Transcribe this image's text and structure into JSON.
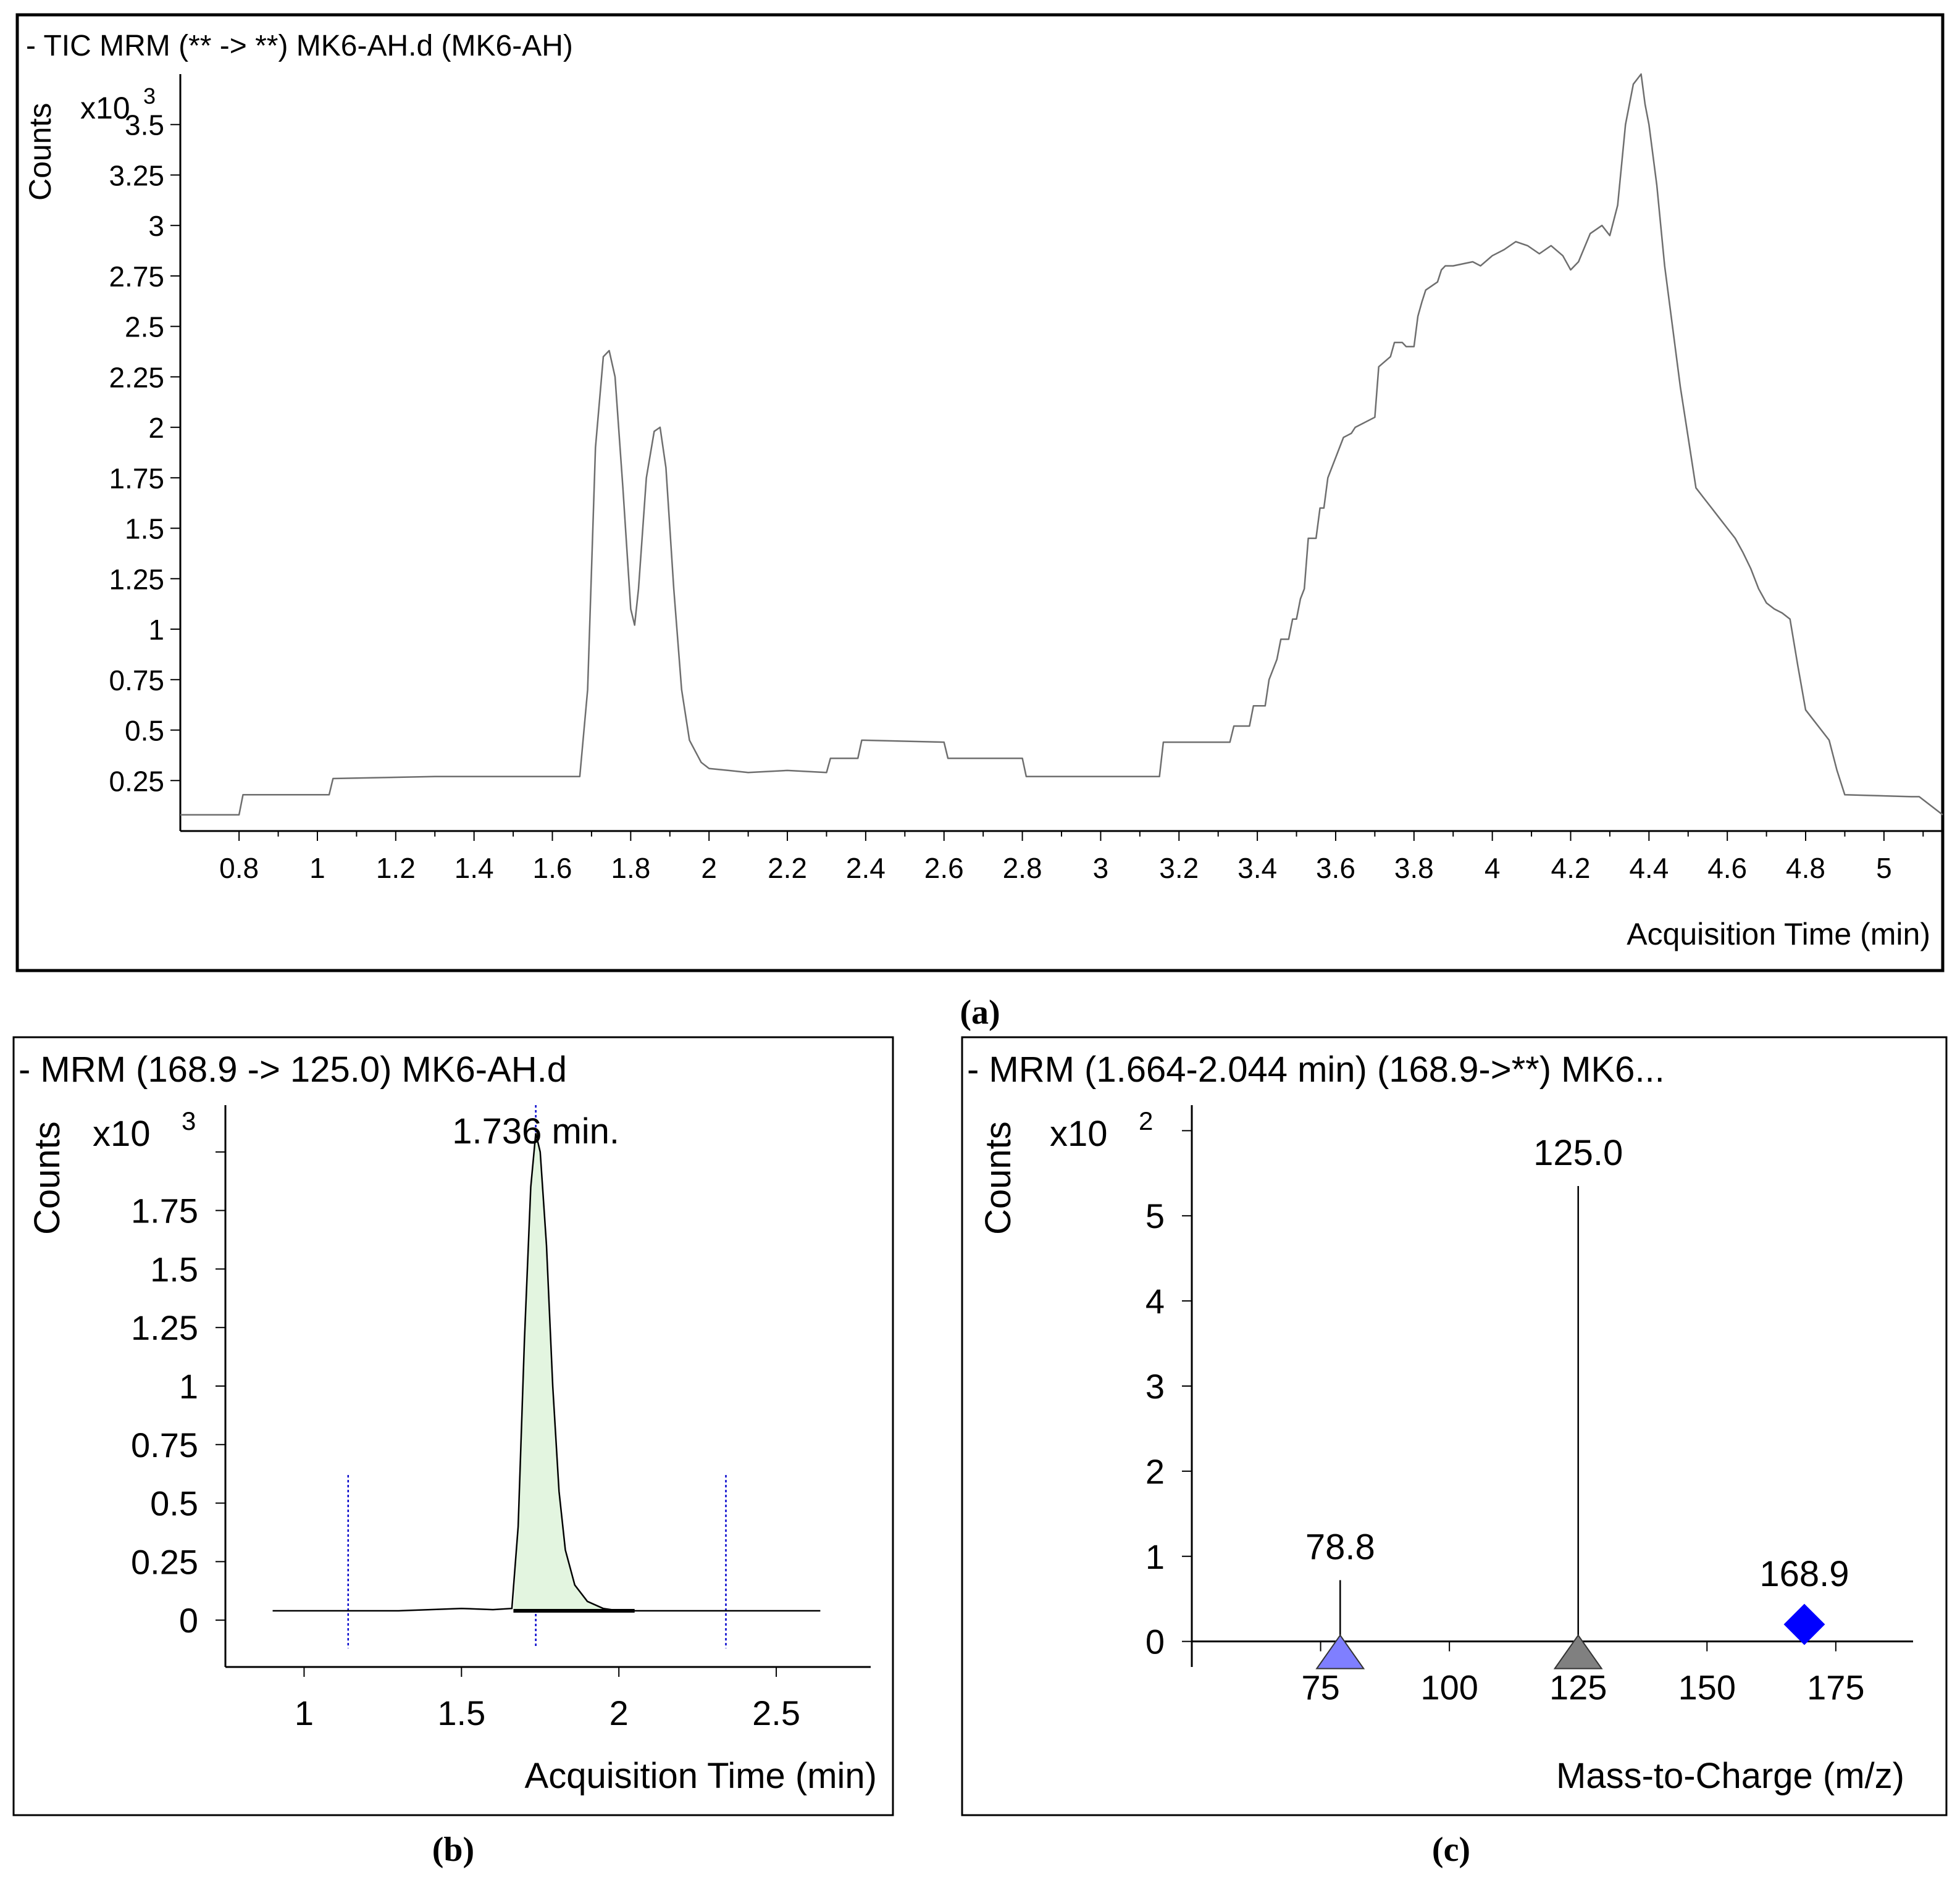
{
  "chart_data": [
    {
      "id": "a",
      "type": "line",
      "panel_label": "(a)",
      "title": "- TIC MRM (** -> **) MK6-AH.d (MK6-AH)",
      "ylabel": "Counts",
      "y_multiplier": "x10",
      "y_exponent": "3",
      "xlabel": "Acquisition Time (min)",
      "xlim": [
        0.65,
        5.15
      ],
      "ylim": [
        0,
        3.75
      ],
      "x_ticks": [
        "0.8",
        "1",
        "1.2",
        "1.4",
        "1.6",
        "1.8",
        "2",
        "2.2",
        "2.4",
        "2.6",
        "2.8",
        "3",
        "3.2",
        "3.4",
        "3.6",
        "3.8",
        "4",
        "4.2",
        "4.4",
        "4.6",
        "4.8",
        "5"
      ],
      "y_ticks": [
        "0.25",
        "0.5",
        "0.75",
        "1",
        "1.25",
        "1.5",
        "1.75",
        "2",
        "2.25",
        "2.5",
        "2.75",
        "3",
        "3.25",
        "3.5"
      ],
      "series": [
        {
          "name": "TIC",
          "x": [
            0.65,
            0.8,
            0.81,
            1.03,
            1.04,
            1.3,
            1.6,
            1.67,
            1.69,
            1.71,
            1.73,
            1.745,
            1.76,
            1.78,
            1.8,
            1.81,
            1.82,
            1.84,
            1.86,
            1.875,
            1.89,
            1.91,
            1.93,
            1.95,
            1.98,
            2.0,
            2.05,
            2.1,
            2.2,
            2.3,
            2.31,
            2.38,
            2.39,
            2.6,
            2.61,
            2.8,
            2.81,
            2.95,
            3.15,
            3.16,
            3.33,
            3.34,
            3.38,
            3.39,
            3.42,
            3.43,
            3.45,
            3.46,
            3.48,
            3.49,
            3.5,
            3.51,
            3.52,
            3.53,
            3.55,
            3.56,
            3.57,
            3.58,
            3.62,
            3.63,
            3.64,
            3.65,
            3.7,
            3.71,
            3.74,
            3.75,
            3.77,
            3.78,
            3.8,
            3.81,
            3.82,
            3.83,
            3.86,
            3.87,
            3.88,
            3.9,
            3.95,
            3.97,
            4.0,
            4.03,
            4.06,
            4.09,
            4.12,
            4.15,
            4.18,
            4.2,
            4.22,
            4.25,
            4.28,
            4.3,
            4.32,
            4.34,
            4.36,
            4.38,
            4.39,
            4.4,
            4.42,
            4.44,
            4.46,
            4.48,
            4.5,
            4.52,
            4.54,
            4.56,
            4.58,
            4.6,
            4.62,
            4.64,
            4.66,
            4.68,
            4.7,
            4.72,
            4.74,
            4.76,
            4.78,
            4.8,
            4.82,
            4.84,
            4.86,
            4.88,
            4.9,
            5.07,
            5.09,
            5.15
          ],
          "y": [
            0.08,
            0.08,
            0.18,
            0.18,
            0.26,
            0.27,
            0.27,
            0.27,
            0.7,
            1.9,
            2.35,
            2.38,
            2.25,
            1.7,
            1.1,
            1.02,
            1.2,
            1.75,
            1.98,
            2.0,
            1.8,
            1.2,
            0.7,
            0.45,
            0.34,
            0.31,
            0.3,
            0.29,
            0.3,
            0.29,
            0.36,
            0.36,
            0.45,
            0.44,
            0.36,
            0.36,
            0.27,
            0.27,
            0.27,
            0.44,
            0.44,
            0.52,
            0.52,
            0.62,
            0.62,
            0.75,
            0.85,
            0.95,
            0.95,
            1.05,
            1.05,
            1.15,
            1.2,
            1.45,
            1.45,
            1.6,
            1.6,
            1.75,
            1.95,
            1.96,
            1.97,
            2.0,
            2.05,
            2.3,
            2.35,
            2.42,
            2.42,
            2.4,
            2.4,
            2.55,
            2.62,
            2.68,
            2.72,
            2.78,
            2.8,
            2.8,
            2.82,
            2.8,
            2.85,
            2.88,
            2.92,
            2.9,
            2.86,
            2.9,
            2.85,
            2.78,
            2.82,
            2.96,
            3.0,
            2.95,
            3.1,
            3.5,
            3.7,
            3.75,
            3.6,
            3.5,
            3.2,
            2.8,
            2.5,
            2.2,
            1.95,
            1.7,
            1.65,
            1.6,
            1.55,
            1.5,
            1.45,
            1.38,
            1.3,
            1.2,
            1.13,
            1.1,
            1.08,
            1.05,
            0.82,
            0.6,
            0.55,
            0.5,
            0.45,
            0.3,
            0.18,
            0.17,
            0.17,
            0.08
          ]
        }
      ]
    },
    {
      "id": "b",
      "type": "line",
      "panel_label": "(b)",
      "title": "- MRM (168.9 -> 125.0) MK6-AH.d",
      "ylabel": "Counts",
      "y_multiplier": "x10",
      "y_exponent": "3",
      "xlabel": "Acquisition Time (min)",
      "xlim": [
        0.75,
        2.8
      ],
      "ylim": [
        -0.2,
        2.2
      ],
      "x_ticks": [
        "1",
        "1.5",
        "2",
        "2.5"
      ],
      "y_ticks": [
        "0",
        "0.25",
        "0.5",
        "0.75",
        "1",
        "1.25",
        "1.5",
        "1.75"
      ],
      "peak_label": "1.736 min.",
      "peak_time": 1.736,
      "marker_lines": [
        1.14,
        1.736,
        2.34
      ],
      "integration_window": [
        1.665,
        2.05
      ],
      "series": [
        {
          "name": "MRM 168.9 -> 125.0",
          "x": [
            0.9,
            1.1,
            1.3,
            1.5,
            1.6,
            1.66,
            1.68,
            1.7,
            1.72,
            1.736,
            1.75,
            1.77,
            1.79,
            1.81,
            1.83,
            1.86,
            1.9,
            1.95,
            2.0,
            2.1,
            2.2,
            2.4,
            2.64
          ],
          "y": [
            0.04,
            0.04,
            0.04,
            0.05,
            0.045,
            0.05,
            0.4,
            1.2,
            1.85,
            2.08,
            2.0,
            1.6,
            1.0,
            0.55,
            0.3,
            0.15,
            0.08,
            0.05,
            0.04,
            0.04,
            0.04,
            0.04,
            0.04
          ]
        }
      ]
    },
    {
      "id": "c",
      "type": "bar",
      "panel_label": "(c)",
      "title": "- MRM (1.664-2.044 min) (168.9->**) MK6...",
      "ylabel": "Counts",
      "y_multiplier": "x10",
      "y_exponent": "2",
      "xlabel": "Mass-to-Charge (m/z)",
      "xlim": [
        50,
        190
      ],
      "ylim": [
        -0.3,
        6.3
      ],
      "x_ticks": [
        "75",
        "100",
        "125",
        "150",
        "175"
      ],
      "y_ticks": [
        "0",
        "1",
        "2",
        "3",
        "4",
        "5"
      ],
      "peaks": [
        {
          "mz": 78.8,
          "label": "78.8",
          "value": 0.72,
          "marker": "triangle",
          "color": "#7f7fff"
        },
        {
          "mz": 125.0,
          "label": "125.0",
          "value": 5.35,
          "marker": "triangle",
          "color": "#808080"
        },
        {
          "mz": 168.9,
          "label": "168.9",
          "value": 0.2,
          "marker": "diamond",
          "color": "#0000ff"
        }
      ]
    }
  ],
  "colors": {
    "tic_line": "#6e6e6e",
    "peak_fill": "#e3f5e0",
    "marker_blue": "#0000cc"
  }
}
